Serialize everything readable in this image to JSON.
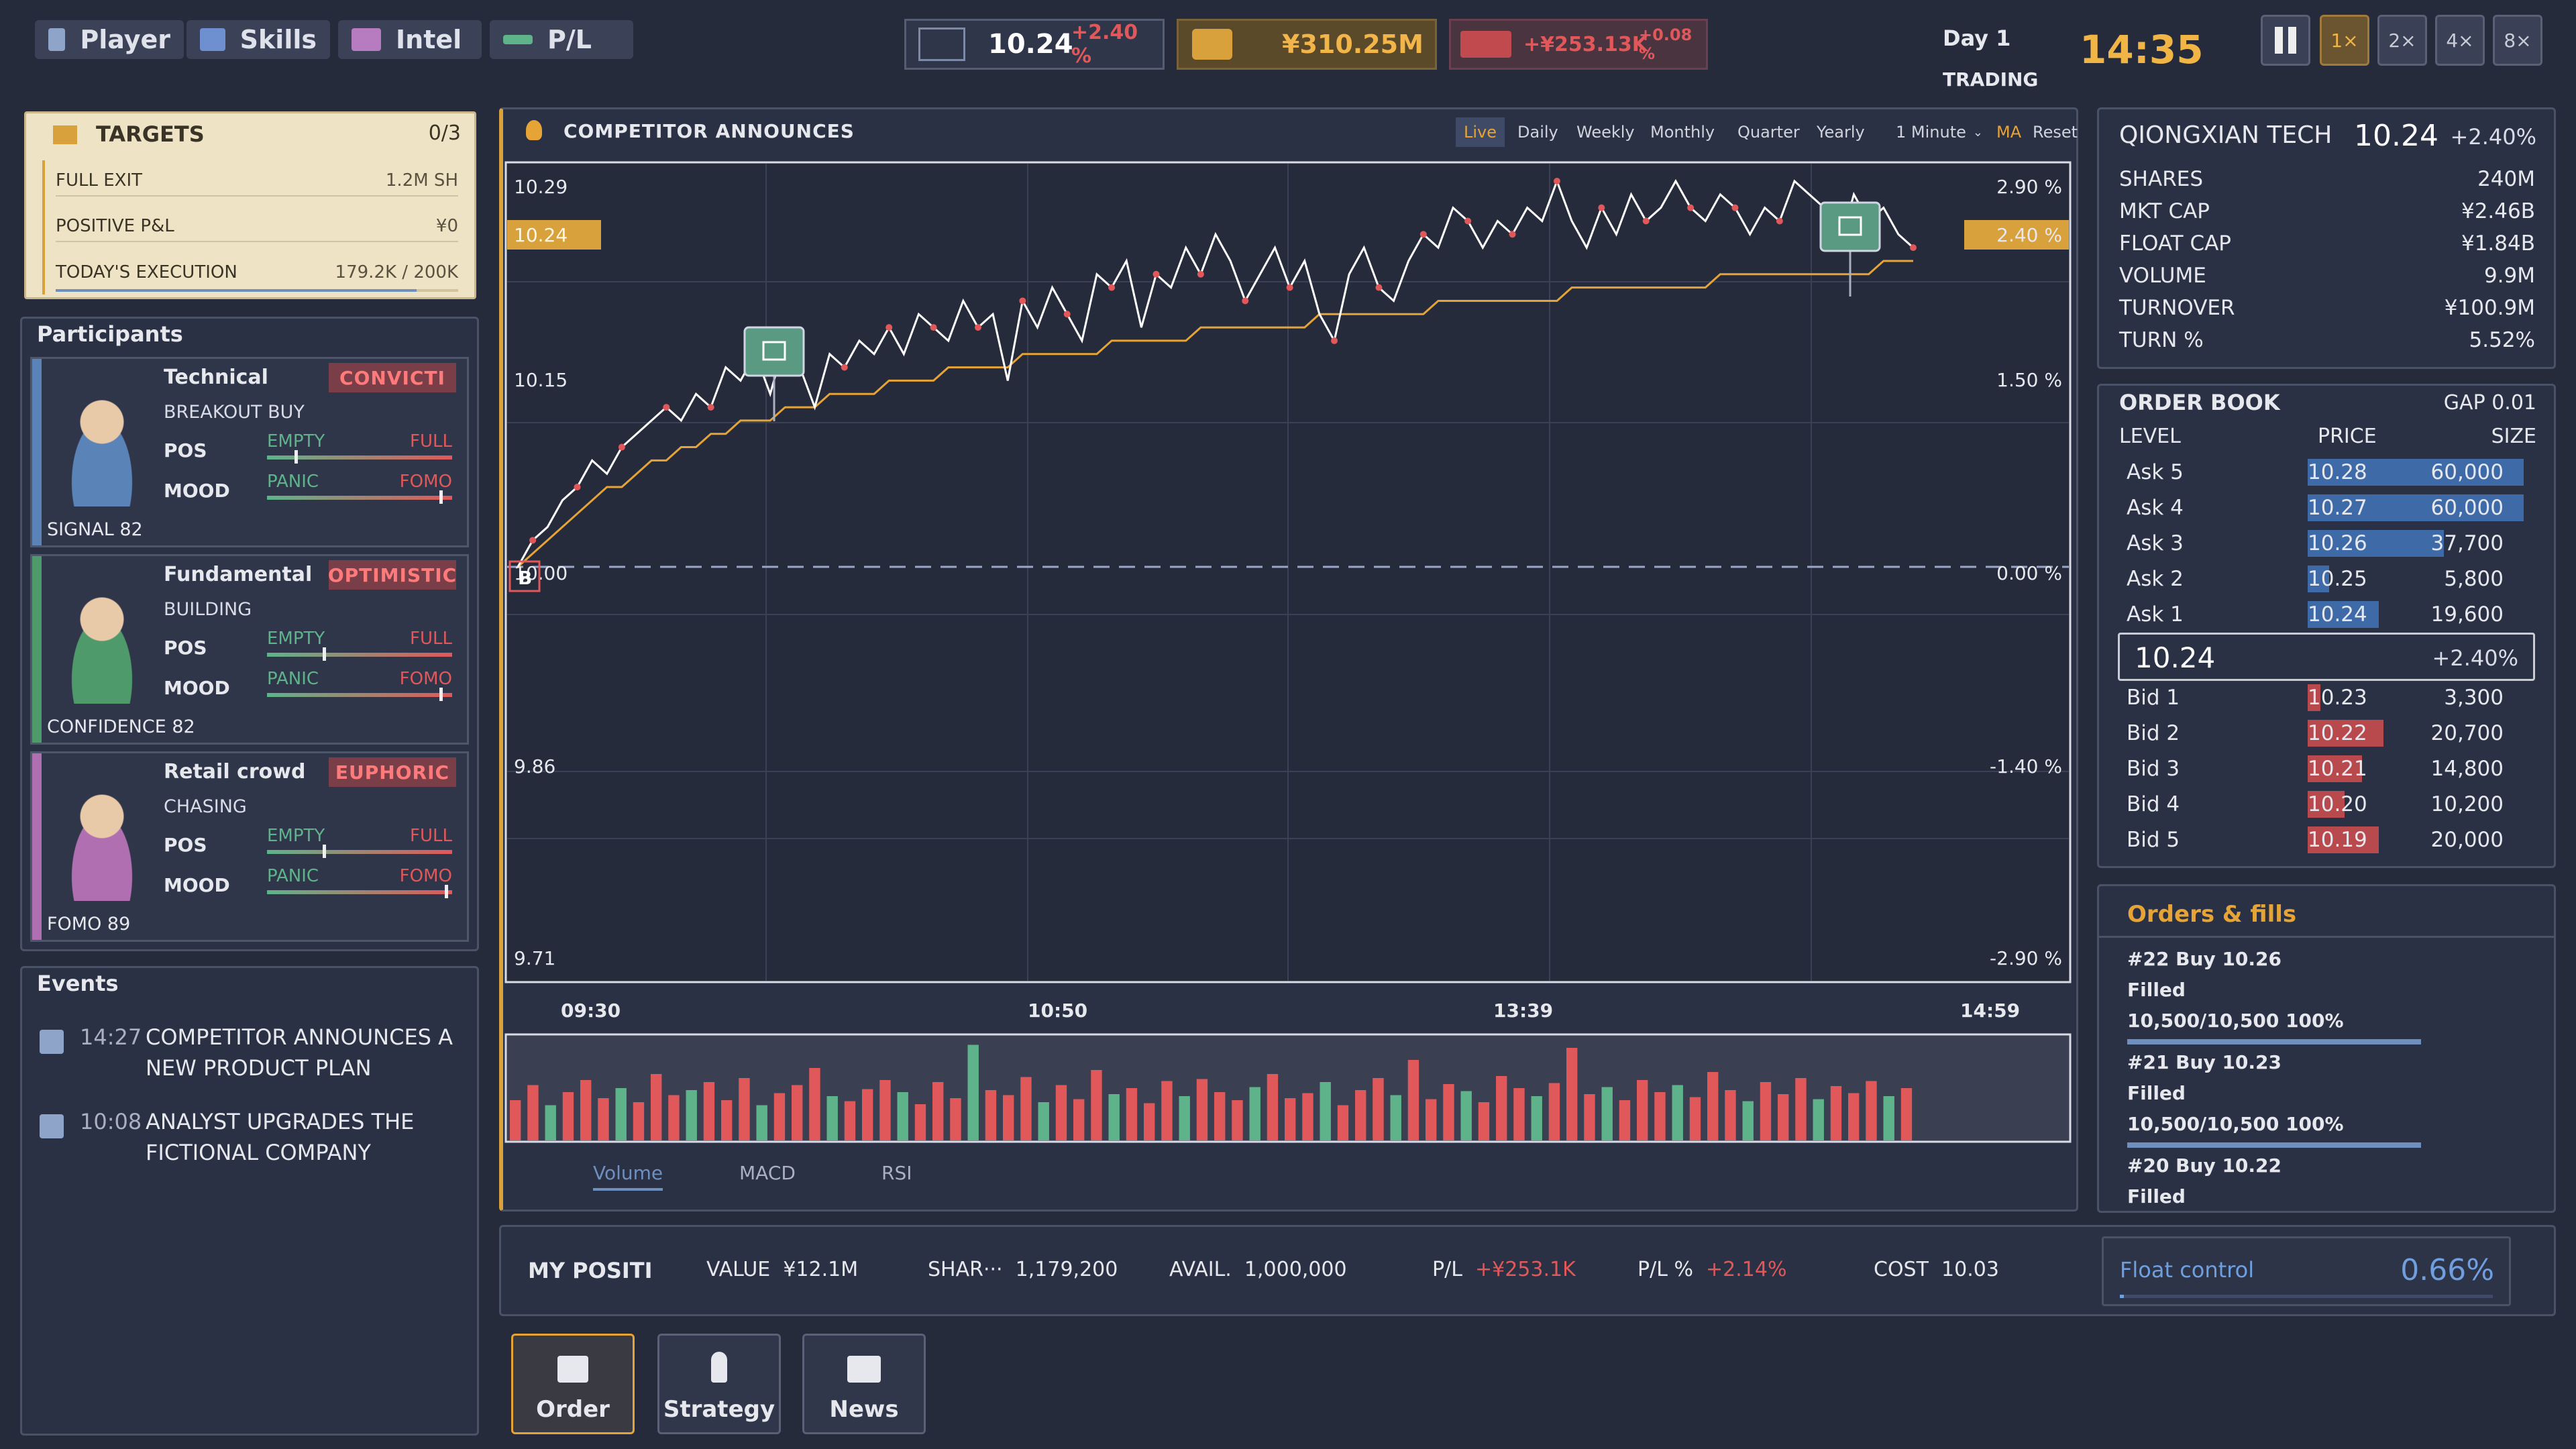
{
  "tabs": [
    {
      "label": "Player",
      "icon": "gamepad-icon"
    },
    {
      "label": "Skills",
      "icon": "puzzle-icon"
    },
    {
      "label": "Intel",
      "icon": "dossier-icon"
    },
    {
      "label": "P/L",
      "icon": "trend-icon"
    }
  ],
  "stats": {
    "price": "10.24",
    "price_change": "+2.40 %",
    "cash": "¥310.25M",
    "pl": "+¥253.13K",
    "pl_pct": "+0.08 %"
  },
  "clock": {
    "day": "Day 1",
    "status": "TRADING",
    "time": "14:35"
  },
  "speeds": [
    "1×",
    "2×",
    "4×",
    "8×"
  ],
  "targets": {
    "title": "TARGETS",
    "count": "0/3",
    "items": [
      {
        "label": "FULL EXIT",
        "value": "1.2M SH"
      },
      {
        "label": "POSITIVE P&L",
        "value": "¥0"
      },
      {
        "label": "TODAY'S EXECUTION",
        "value": "179.2K / 200K",
        "progress": 0.896
      }
    ]
  },
  "participants": {
    "title": "Participants",
    "pos_label": "POS",
    "mood_label": "MOOD",
    "empty": "EMPTY",
    "full": "FULL",
    "panic": "PANIC",
    "fomo": "FOMO",
    "items": [
      {
        "name": "Technical",
        "badge": "CONVICTI",
        "sub": "BREAKOUT BUY",
        "foot": "SIGNAL 82",
        "color": "#5a84b8",
        "pos": 0.15,
        "mood": 0.95
      },
      {
        "name": "Fundamental",
        "badge": "OPTIMISTIC",
        "sub": "BUILDING",
        "foot": "CONFIDENCE 82",
        "color": "#4f9a6a",
        "pos": 0.3,
        "mood": 0.95
      },
      {
        "name": "Retail crowd",
        "badge": "EUPHORIC",
        "sub": "CHASING",
        "foot": "FOMO 89",
        "color": "#b06fb0",
        "pos": 0.3,
        "mood": 0.98
      }
    ]
  },
  "events": {
    "title": "Events",
    "items": [
      {
        "time": "14:27",
        "line1": "COMPETITOR ANNOUNCES A",
        "line2": "NEW PRODUCT PLAN"
      },
      {
        "time": "10:08",
        "line1": "ANALYST UPGRADES THE",
        "line2": "FICTIONAL COMPANY"
      }
    ]
  },
  "chart": {
    "title": "COMPETITOR ANNOUNCES",
    "controls": [
      "Live",
      "Daily",
      "Weekly",
      "Monthly",
      "Quarter",
      "Yearly",
      "1 Minute",
      "MA",
      "Reset"
    ],
    "left_ticks": [
      "10.29",
      "10.24",
      "10.15",
      "10.00",
      "9.86",
      "9.71"
    ],
    "right_ticks": [
      "2.90 %",
      "2.40 %",
      "1.50 %",
      "0.00 %",
      "-1.40 %",
      "-2.90 %"
    ],
    "time_ticks": [
      "09:30",
      "10:50",
      "13:39",
      "14:59"
    ],
    "buy_marker": "B",
    "indicator_tabs": [
      "Volume",
      "MACD",
      "RSI"
    ]
  },
  "chart_data": {
    "type": "line",
    "series": [
      {
        "values": [
          10.0,
          10.02,
          10.03,
          10.05,
          10.06,
          10.08,
          10.07,
          10.09,
          10.1,
          10.11,
          10.12,
          10.11,
          10.13,
          10.12,
          10.15,
          10.14,
          10.16,
          10.13,
          10.17,
          10.15,
          10.12,
          10.16,
          10.15,
          10.17,
          10.16,
          10.18,
          10.16,
          10.19,
          10.18,
          10.17,
          10.2,
          10.18,
          10.19,
          10.14,
          10.2,
          10.18,
          10.21,
          10.19,
          10.17,
          10.22,
          10.21,
          10.23,
          10.18,
          10.22,
          10.21,
          10.24,
          10.22,
          10.25,
          10.23,
          10.2,
          10.22,
          10.24,
          10.21,
          10.23,
          10.19,
          10.17,
          10.22,
          10.24,
          10.21,
          10.2,
          10.23,
          10.25,
          10.24,
          10.27,
          10.26,
          10.24,
          10.26,
          10.25,
          10.27,
          10.26,
          10.29,
          10.26,
          10.24,
          10.27,
          10.25,
          10.28,
          10.26,
          10.27,
          10.29,
          10.27,
          10.26,
          10.28,
          10.27,
          10.25,
          10.27,
          10.26,
          10.29,
          10.28,
          10.27,
          10.24,
          10.28,
          10.26,
          10.27,
          10.25,
          10.24
        ]
      },
      {
        "name": "MA",
        "values": [
          10.0,
          10.01,
          10.02,
          10.03,
          10.04,
          10.05,
          10.06,
          10.06,
          10.07,
          10.08,
          10.08,
          10.09,
          10.09,
          10.1,
          10.1,
          10.11,
          10.11,
          10.11,
          10.12,
          10.12,
          10.12,
          10.13,
          10.13,
          10.13,
          10.13,
          10.14,
          10.14,
          10.14,
          10.14,
          10.15,
          10.15,
          10.15,
          10.15,
          10.15,
          10.16,
          10.16,
          10.16,
          10.16,
          10.16,
          10.16,
          10.17,
          10.17,
          10.17,
          10.17,
          10.17,
          10.17,
          10.18,
          10.18,
          10.18,
          10.18,
          10.18,
          10.18,
          10.18,
          10.18,
          10.19,
          10.19,
          10.19,
          10.19,
          10.19,
          10.19,
          10.19,
          10.19,
          10.2,
          10.2,
          10.2,
          10.2,
          10.2,
          10.2,
          10.2,
          10.2,
          10.2,
          10.21,
          10.21,
          10.21,
          10.21,
          10.21,
          10.21,
          10.21,
          10.21,
          10.21,
          10.21,
          10.22,
          10.22,
          10.22,
          10.22,
          10.22,
          10.22,
          10.22,
          10.22,
          10.22,
          10.22,
          10.22,
          10.23,
          10.23,
          10.23
        ]
      }
    ],
    "ylim": [
      9.71,
      10.29
    ],
    "base": 10.0,
    "volume": [
      40,
      55,
      35,
      48,
      60,
      42,
      52,
      38,
      66,
      45,
      50,
      58,
      40,
      62,
      35,
      47,
      55,
      72,
      44,
      39,
      51,
      60,
      48,
      36,
      58,
      42,
      95,
      50,
      45,
      63,
      38,
      55,
      41,
      70,
      46,
      52,
      37,
      59,
      44,
      61,
      48,
      40,
      53,
      66,
      42,
      47,
      58,
      35,
      50,
      62,
      45,
      80,
      41,
      56,
      49,
      38,
      64,
      52,
      44,
      57,
      92,
      46,
      53,
      40,
      60,
      48,
      55,
      43,
      68,
      50,
      39,
      58,
      46,
      62,
      41,
      54,
      47,
      59,
      44,
      52
    ]
  },
  "quote": {
    "name": "QIONGXIAN TECH",
    "price": "10.24",
    "change": "+2.40%",
    "rows": [
      {
        "k": "SHARES",
        "v": "240M"
      },
      {
        "k": "MKT CAP",
        "v": "¥2.46B"
      },
      {
        "k": "FLOAT CAP",
        "v": "¥1.84B"
      },
      {
        "k": "VOLUME",
        "v": "9.9M"
      },
      {
        "k": "TURNOVER",
        "v": "¥100.9M"
      },
      {
        "k": "TURN %",
        "v": "5.52%"
      }
    ]
  },
  "orderbook": {
    "title": "ORDER BOOK",
    "gap": "GAP 0.01",
    "col_level": "LEVEL",
    "col_price": "PRICE",
    "col_size": "SIZE",
    "mid": "10.24",
    "mid_change": "+2.40%",
    "asks": [
      {
        "lv": "Ask 5",
        "p": "10.28",
        "s": "60,000",
        "f": 1.0
      },
      {
        "lv": "Ask 4",
        "p": "10.27",
        "s": "60,000",
        "f": 1.0
      },
      {
        "lv": "Ask 3",
        "p": "10.26",
        "s": "37,700",
        "f": 0.63
      },
      {
        "lv": "Ask 2",
        "p": "10.25",
        "s": "5,800",
        "f": 0.1
      },
      {
        "lv": "Ask 1",
        "p": "10.24",
        "s": "19,600",
        "f": 0.33
      }
    ],
    "bids": [
      {
        "lv": "Bid 1",
        "p": "10.23",
        "s": "3,300",
        "f": 0.06
      },
      {
        "lv": "Bid 2",
        "p": "10.22",
        "s": "20,700",
        "f": 0.35
      },
      {
        "lv": "Bid 3",
        "p": "10.21",
        "s": "14,800",
        "f": 0.25
      },
      {
        "lv": "Bid 4",
        "p": "10.20",
        "s": "10,200",
        "f": 0.17
      },
      {
        "lv": "Bid 5",
        "p": "10.19",
        "s": "20,000",
        "f": 0.33
      }
    ]
  },
  "fills": {
    "title": "Orders & fills",
    "items": [
      {
        "head": "#22  Buy  10.26",
        "status": "Filled",
        "detail": "10,500/10,500  100%"
      },
      {
        "head": "#21  Buy  10.23",
        "status": "Filled",
        "detail": "10,500/10,500  100%"
      },
      {
        "head": "#20  Buy  10.22",
        "status": "Filled"
      }
    ]
  },
  "position": {
    "title": "MY POSITI",
    "value_label": "VALUE",
    "value": "¥12.1M",
    "shares_label": "SHAR···",
    "shares": "1,179,200",
    "avail_label": "AVAIL.",
    "avail": "1,000,000",
    "pl_label": "P/L",
    "pl": "+¥253.1K",
    "plpct_label": "P/L %",
    "plpct": "+2.14%",
    "cost_label": "COST",
    "cost": "10.03",
    "float_label": "Float control",
    "float_value": "0.66%"
  },
  "actions": [
    {
      "label": "Order",
      "icon": "printer-icon"
    },
    {
      "label": "Strategy",
      "icon": "strategy-icon"
    },
    {
      "label": "News",
      "icon": "newspaper-icon"
    }
  ]
}
